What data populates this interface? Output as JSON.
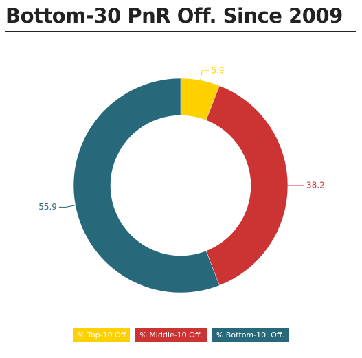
{
  "chart_data": {
    "type": "pie",
    "title": "Bottom-30 PnR Off. Since 2009",
    "categories": [
      "% Top-10 Off",
      "% Middle-10 Off.",
      "% Bottom-10. Off."
    ],
    "values": [
      5.9,
      38.2,
      55.9
    ],
    "colors": [
      "#ffd000",
      "#cc3333",
      "#27687a"
    ],
    "donut": true
  }
}
